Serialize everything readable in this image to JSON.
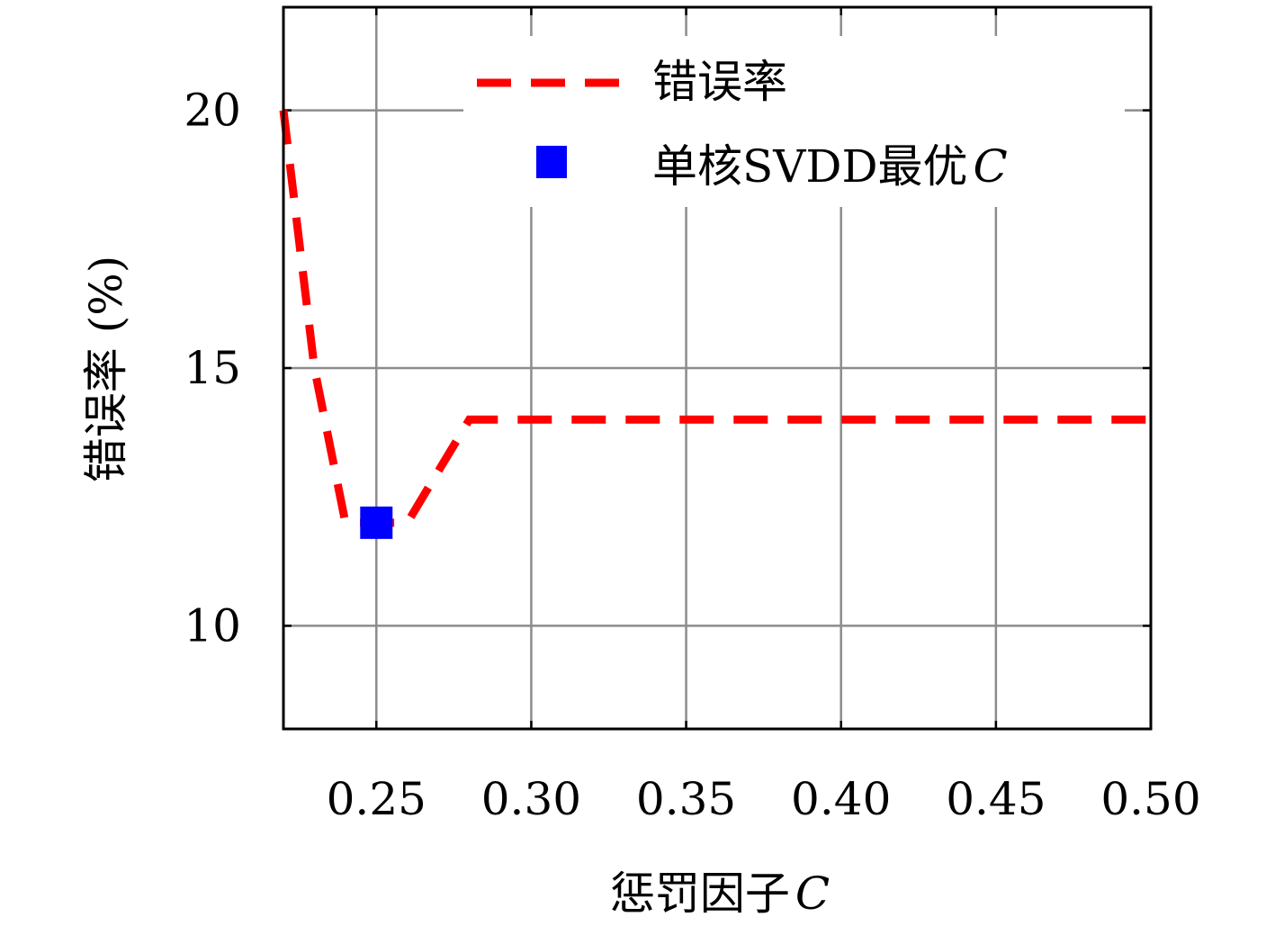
{
  "chart_data": {
    "type": "line",
    "title": "",
    "xlabel": "惩罚因子",
    "xlabel_var": "C",
    "ylabel": "错误率 (%)",
    "xlim": [
      0.22,
      0.5
    ],
    "ylim": [
      8,
      22
    ],
    "xticks": [
      0.25,
      0.3,
      0.35,
      0.4,
      0.45,
      0.5
    ],
    "xtick_labels": [
      "0.25",
      "0.30",
      "0.35",
      "0.40",
      "0.45",
      "0.50"
    ],
    "yticks": [
      10,
      15,
      20
    ],
    "ytick_labels": [
      "10",
      "15",
      "20"
    ],
    "grid": true,
    "legend_position": "top-right",
    "series": [
      {
        "name": "错误率",
        "style": "dashed",
        "color": "#ff0000",
        "x": [
          0.22,
          0.23,
          0.24,
          0.25,
          0.26,
          0.27,
          0.28,
          0.29,
          0.3,
          0.35,
          0.4,
          0.45,
          0.5
        ],
        "y": [
          20.0,
          15.0,
          12.0,
          12.0,
          12.0,
          13.0,
          14.0,
          14.0,
          14.0,
          14.0,
          14.0,
          14.0,
          14.0
        ]
      }
    ],
    "markers": [
      {
        "name": "单核SVDD最优",
        "name_var": "C",
        "color": "#0000ff",
        "x": 0.25,
        "y": 12.0
      }
    ]
  }
}
